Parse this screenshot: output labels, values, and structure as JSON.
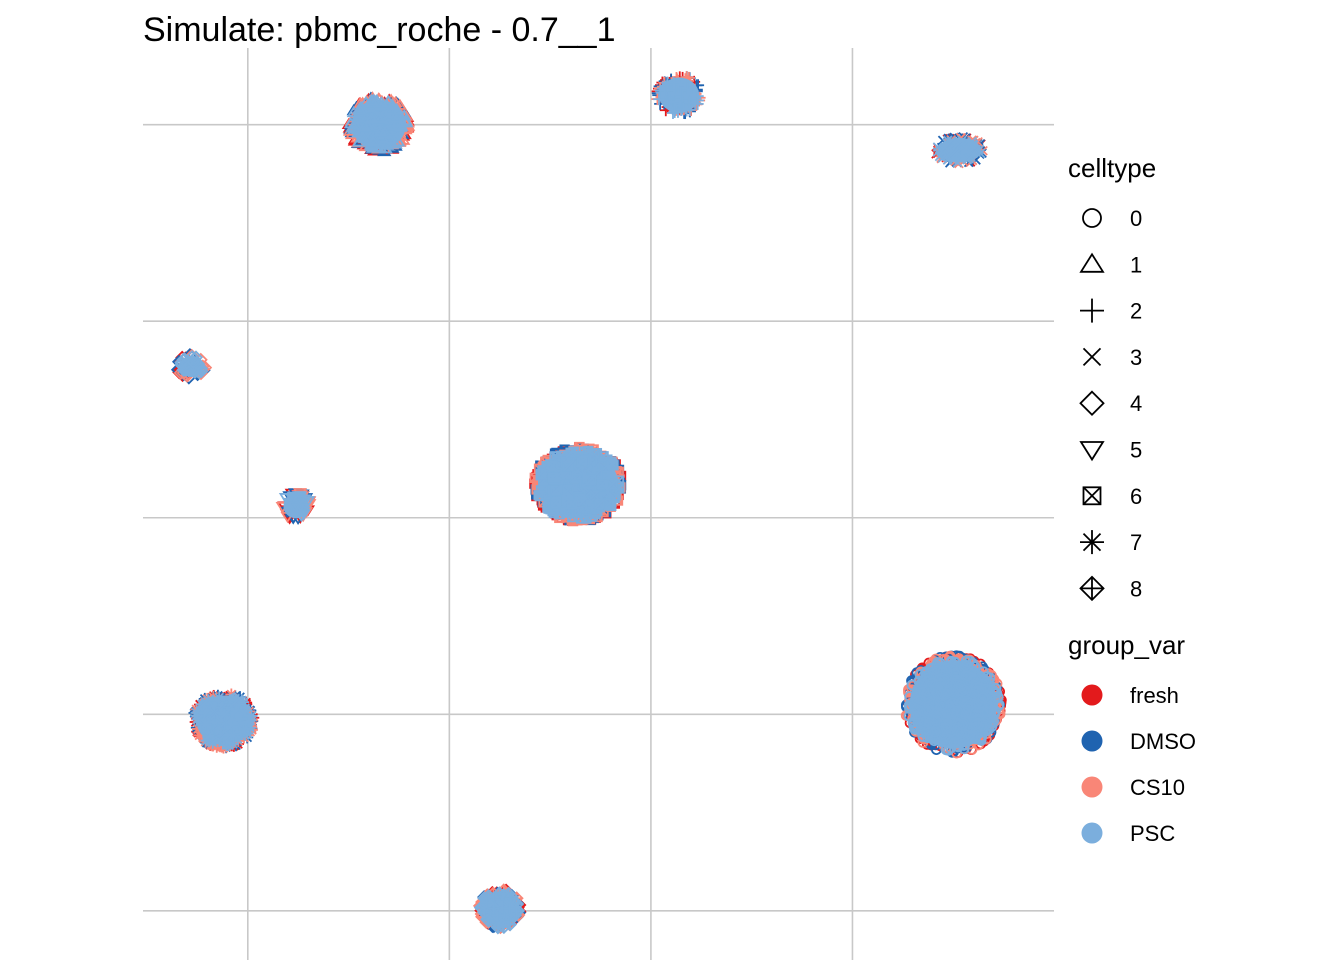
{
  "chart_data": {
    "type": "scatter",
    "title": "Simulate: pbmc_roche - 0.7__1",
    "xlabel": "",
    "ylabel": "",
    "grid": true,
    "axis_ticks_labeled": false,
    "legend_position": "right",
    "colors": {
      "fresh": "#E31A1C",
      "DMSO": "#1F63B0",
      "CS10": "#F98677",
      "PSC": "#7BAEDD"
    },
    "shape_legend": {
      "title": "celltype",
      "entries": [
        {
          "label": "0",
          "shape": "circle-open"
        },
        {
          "label": "1",
          "shape": "triangle-open"
        },
        {
          "label": "2",
          "shape": "plus"
        },
        {
          "label": "3",
          "shape": "cross"
        },
        {
          "label": "4",
          "shape": "diamond-open"
        },
        {
          "label": "5",
          "shape": "triangle-down-open"
        },
        {
          "label": "6",
          "shape": "square-cross"
        },
        {
          "label": "7",
          "shape": "asterisk"
        },
        {
          "label": "8",
          "shape": "diamond-plus"
        }
      ]
    },
    "color_legend": {
      "title": "group_var",
      "entries": [
        {
          "label": "fresh",
          "color": "#E31A1C"
        },
        {
          "label": "DMSO",
          "color": "#1F63B0"
        },
        {
          "label": "CS10",
          "color": "#F98677"
        },
        {
          "label": "PSC",
          "color": "#7BAEDD"
        }
      ]
    },
    "xlim": [
      -0.52,
      4.0
    ],
    "ylim": [
      -0.25,
      4.39
    ],
    "gridlines_x": [
      0,
      1,
      2,
      3
    ],
    "gridlines_y": [
      0,
      1,
      2,
      3,
      4
    ],
    "clusters": [
      {
        "celltype": "0",
        "x": 3.5,
        "y": 1.05,
        "rx": 0.24,
        "ry": 0.25
      },
      {
        "celltype": "1",
        "x": 0.65,
        "y": 4.0,
        "rx": 0.15,
        "ry": 0.14
      },
      {
        "celltype": "2",
        "x": 2.14,
        "y": 4.15,
        "rx": 0.11,
        "ry": 0.1
      },
      {
        "celltype": "3",
        "x": 3.53,
        "y": 3.87,
        "rx": 0.12,
        "ry": 0.07
      },
      {
        "celltype": "4",
        "x": -0.28,
        "y": 2.77,
        "rx": 0.07,
        "ry": 0.06
      },
      {
        "celltype": "5",
        "x": 0.24,
        "y": 2.06,
        "rx": 0.07,
        "ry": 0.07
      },
      {
        "celltype": "6",
        "x": 1.64,
        "y": 2.17,
        "rx": 0.22,
        "ry": 0.19
      },
      {
        "celltype": "7",
        "x": -0.12,
        "y": 0.97,
        "rx": 0.15,
        "ry": 0.14
      },
      {
        "celltype": "8",
        "x": 1.25,
        "y": 0.01,
        "rx": 0.1,
        "ry": 0.1
      }
    ]
  }
}
